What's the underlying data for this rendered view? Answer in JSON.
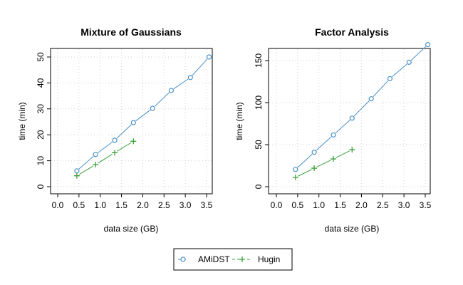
{
  "colors": {
    "amidst": "#4a90c8",
    "hugin": "#3aa03a",
    "grid": "#d3d3d3"
  },
  "chart_data": [
    {
      "type": "line",
      "title": "Mixture of Gaussians",
      "xlabel": "data size (GB)",
      "ylabel": "time (min)",
      "xlim": [
        0.0,
        3.6
      ],
      "ylim": [
        0,
        50
      ],
      "xticks": [
        "0.0",
        "0.5",
        "1.0",
        "1.5",
        "2.0",
        "2.5",
        "3.0",
        "3.5"
      ],
      "yticks": [
        "0",
        "10",
        "20",
        "30",
        "40",
        "50"
      ],
      "grid": true,
      "series": [
        {
          "name": "AMiDST",
          "marker": "circle",
          "x": [
            0.45,
            0.89,
            1.34,
            1.78,
            2.23,
            2.67,
            3.12,
            3.56
          ],
          "y": [
            6.1,
            12.4,
            17.9,
            24.7,
            30.2,
            37.1,
            42.1,
            50.0
          ]
        },
        {
          "name": "Hugin",
          "marker": "plus",
          "x": [
            0.45,
            0.89,
            1.34,
            1.78
          ],
          "y": [
            4.2,
            8.5,
            13.1,
            17.5
          ]
        }
      ]
    },
    {
      "type": "line",
      "title": "Factor Analysis",
      "xlabel": "data size (GB)",
      "ylabel": "time (min)",
      "xlim": [
        0.0,
        3.6
      ],
      "ylim": [
        0,
        170
      ],
      "xticks": [
        "0.0",
        "0.5",
        "1.0",
        "1.5",
        "2.0",
        "2.5",
        "3.0",
        "3.5"
      ],
      "yticks": [
        "0",
        "50",
        "100",
        "150"
      ],
      "grid": true,
      "series": [
        {
          "name": "AMiDST",
          "marker": "circle",
          "x": [
            0.45,
            0.89,
            1.34,
            1.78,
            2.23,
            2.67,
            3.12,
            3.56
          ],
          "y": [
            20.5,
            41.0,
            61.5,
            81.5,
            104.5,
            128.5,
            148.0,
            169.0
          ]
        },
        {
          "name": "Hugin",
          "marker": "plus",
          "x": [
            0.45,
            0.89,
            1.34,
            1.78
          ],
          "y": [
            11.0,
            22.0,
            33.0,
            44.0
          ]
        }
      ]
    }
  ],
  "legend": {
    "placement": "bottom-center",
    "items": [
      {
        "label": "AMiDST",
        "marker": "circle"
      },
      {
        "label": "Hugin",
        "marker": "plus"
      }
    ]
  }
}
